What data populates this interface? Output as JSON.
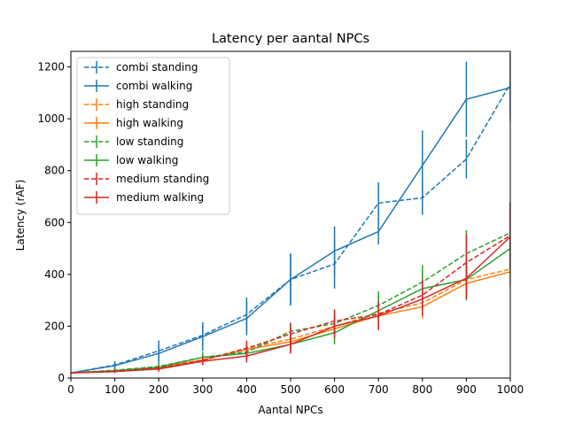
{
  "chart_data": {
    "type": "line",
    "title": "Latency per aantal NPCs",
    "xlabel": "Aantal NPCs",
    "ylabel": "Latency (rAF)",
    "xlim": [
      0,
      1000
    ],
    "ylim": [
      0,
      1260
    ],
    "xticks": [
      0,
      100,
      200,
      300,
      400,
      500,
      600,
      700,
      800,
      900,
      1000
    ],
    "yticks": [
      0,
      200,
      400,
      600,
      800,
      1000,
      1200
    ],
    "grid": false,
    "legend_position": "top-left",
    "x": [
      0,
      100,
      200,
      300,
      400,
      500,
      600,
      700,
      800,
      900,
      1000
    ],
    "series": [
      {
        "name": "combi standing",
        "color": "#1f77b4",
        "dashed": true,
        "values": [
          20,
          50,
          105,
          165,
          245,
          380,
          440,
          675,
          695,
          845,
          1135
        ],
        "errors": [
          0,
          15,
          40,
          50,
          65,
          100,
          95,
          80,
          65,
          75,
          120
        ]
      },
      {
        "name": "combi walking",
        "color": "#1f77b4",
        "dashed": false,
        "values": [
          20,
          48,
          95,
          160,
          230,
          380,
          490,
          565,
          820,
          1075,
          1120
        ],
        "errors": [
          0,
          12,
          35,
          55,
          65,
          100,
          95,
          50,
          135,
          145,
          130
        ]
      },
      {
        "name": "high standing",
        "color": "#ff7f0e",
        "dashed": true,
        "values": [
          20,
          30,
          42,
          70,
          115,
          150,
          200,
          250,
          290,
          380,
          420
        ],
        "errors": [
          0,
          5,
          10,
          15,
          25,
          30,
          35,
          40,
          45,
          55,
          60
        ]
      },
      {
        "name": "high walking",
        "color": "#ff7f0e",
        "dashed": false,
        "values": [
          20,
          28,
          40,
          70,
          110,
          140,
          190,
          240,
          275,
          365,
          410
        ],
        "errors": [
          0,
          5,
          10,
          15,
          25,
          30,
          35,
          40,
          45,
          55,
          60
        ]
      },
      {
        "name": "low standing",
        "color": "#2ca02c",
        "dashed": true,
        "values": [
          20,
          30,
          45,
          80,
          100,
          180,
          210,
          280,
          370,
          480,
          560
        ],
        "errors": [
          0,
          8,
          15,
          20,
          25,
          35,
          45,
          55,
          65,
          90,
          120
        ]
      },
      {
        "name": "low walking",
        "color": "#2ca02c",
        "dashed": false,
        "values": [
          20,
          28,
          42,
          80,
          95,
          130,
          175,
          260,
          345,
          380,
          500
        ],
        "errors": [
          0,
          8,
          15,
          20,
          25,
          35,
          45,
          55,
          65,
          80,
          100
        ]
      },
      {
        "name": "medium standing",
        "color": "#d62728",
        "dashed": true,
        "values": [
          20,
          25,
          38,
          68,
          115,
          170,
          220,
          245,
          320,
          445,
          550
        ],
        "errors": [
          0,
          5,
          10,
          15,
          30,
          40,
          45,
          50,
          60,
          110,
          130
        ]
      },
      {
        "name": "medium walking",
        "color": "#d62728",
        "dashed": false,
        "values": [
          20,
          25,
          35,
          65,
          85,
          130,
          200,
          240,
          305,
          385,
          545
        ],
        "errors": [
          0,
          5,
          10,
          15,
          25,
          35,
          45,
          55,
          65,
          80,
          130
        ]
      }
    ]
  }
}
